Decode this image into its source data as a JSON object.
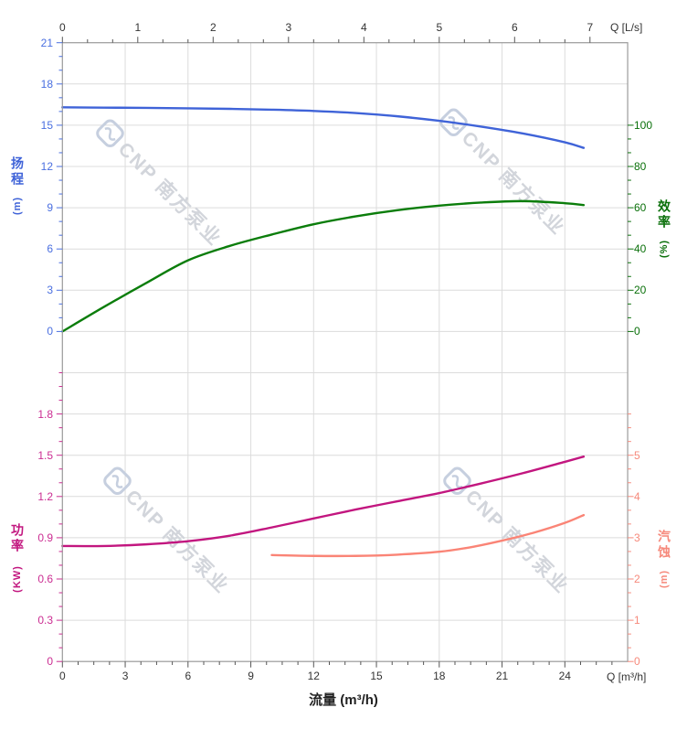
{
  "watermark": {
    "text": "CNP 南方泵业",
    "logo": "wave-drop-logo",
    "color": "#d2d5db",
    "logo_color": "#c6cfdf"
  },
  "colors": {
    "head": "#3f63d8",
    "efficiency": "#0b7d0b",
    "power": "#c2167f",
    "npsh": "#fa8476",
    "grid": "#dcdcdc",
    "border": "#9a9a9a",
    "axis_text_dark": "#333333"
  },
  "chart_data": [
    {
      "type": "line",
      "region": "top",
      "x_axis_top": {
        "label": "Q [L/s]",
        "min": 0,
        "max": 7.5,
        "ticks": [
          0,
          1,
          2,
          3,
          4,
          5,
          6,
          7
        ]
      },
      "y_axis_left": {
        "title": "扬程",
        "unit": "(m)",
        "min": 0,
        "max": 21,
        "ticks": [
          21,
          18,
          15,
          12,
          9,
          6,
          3,
          0
        ]
      },
      "y_axis_right": {
        "title": "效率",
        "unit": "(%)",
        "min": 0,
        "max": 100,
        "ticks": [
          100,
          80,
          60,
          40,
          20,
          0
        ]
      },
      "grid": true,
      "series": [
        {
          "name": "head",
          "axis": "head",
          "color": "#3f63d8",
          "x": [
            0,
            2,
            4,
            6,
            8,
            10,
            12,
            14,
            16,
            18,
            20,
            22,
            24,
            24.9
          ],
          "y": [
            16.3,
            16.28,
            16.26,
            16.23,
            16.19,
            16.13,
            16.04,
            15.89,
            15.65,
            15.32,
            14.9,
            14.4,
            13.76,
            13.35
          ]
        },
        {
          "name": "efficiency",
          "axis": "eff",
          "color": "#0b7d0b",
          "x": [
            0,
            2,
            4,
            6,
            8,
            10,
            12,
            14,
            16,
            18,
            20,
            22,
            24,
            24.9
          ],
          "y": [
            0,
            12,
            23.5,
            34.5,
            41.5,
            47,
            52,
            55.8,
            58.8,
            61,
            62.5,
            63.2,
            62.2,
            61.3
          ]
        }
      ]
    },
    {
      "type": "line",
      "region": "bottom",
      "x_axis": {
        "label": "Q [m³/h]",
        "title": "流量 (m³/h)",
        "min": 0,
        "max": 27,
        "ticks": [
          0,
          3,
          6,
          9,
          12,
          15,
          18,
          21,
          24
        ]
      },
      "y_axis_left": {
        "title": "功率",
        "unit": "(KW)",
        "min": 0,
        "max": 2.1,
        "ticks": [
          "1.8",
          "1.5",
          "1.2",
          "0.9",
          "0.6",
          "0.3",
          "0"
        ]
      },
      "y_axis_right": {
        "title": "汽蚀",
        "unit": "(m)",
        "min": 0,
        "max": 5,
        "ticks": [
          5,
          4,
          3,
          2,
          1,
          0
        ]
      },
      "grid": true,
      "series": [
        {
          "name": "power",
          "axis": "power",
          "color": "#c2167f",
          "x": [
            0,
            2,
            4,
            6,
            8,
            10,
            12,
            14,
            16,
            18,
            20,
            22,
            24,
            24.9
          ],
          "y": [
            0.84,
            0.84,
            0.852,
            0.875,
            0.915,
            0.975,
            1.04,
            1.105,
            1.165,
            1.225,
            1.295,
            1.37,
            1.452,
            1.49
          ]
        },
        {
          "name": "npsh",
          "axis": "npsh",
          "color": "#fa8476",
          "x": [
            10,
            12,
            14,
            16,
            18,
            19.5,
            21,
            22.5,
            24,
            24.9
          ],
          "y": [
            2.58,
            2.56,
            2.56,
            2.59,
            2.66,
            2.77,
            2.93,
            3.12,
            3.36,
            3.55
          ]
        }
      ]
    }
  ]
}
